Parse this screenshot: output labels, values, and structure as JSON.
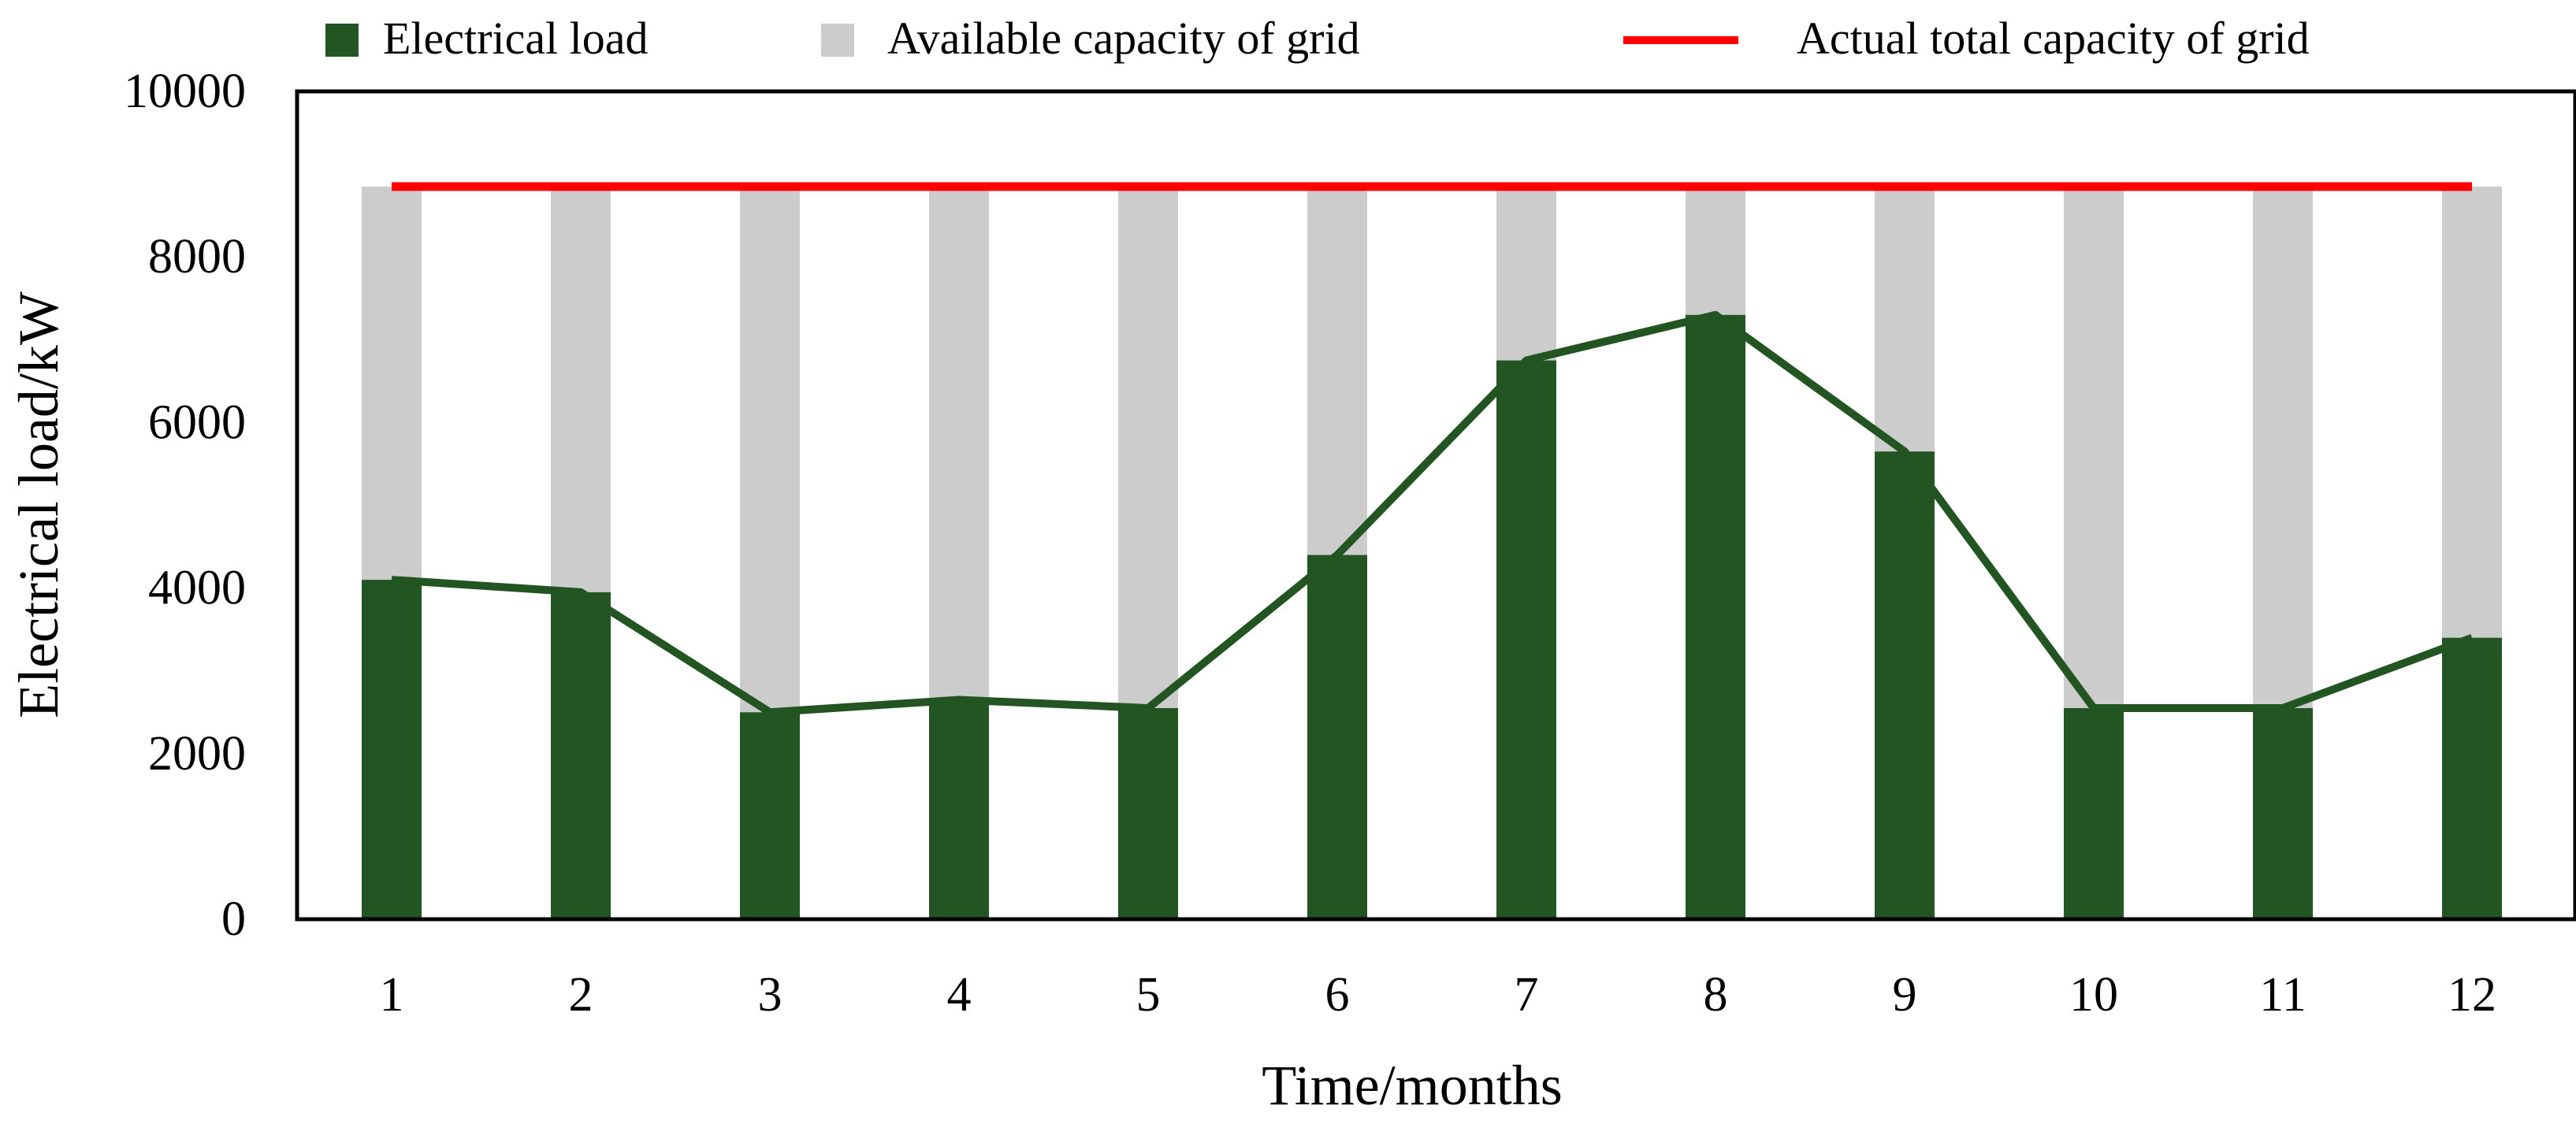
{
  "chart_data": {
    "type": "bar",
    "title": "",
    "xlabel": "Time/months",
    "ylabel": "Electrical  load/kW",
    "categories": [
      "1",
      "2",
      "3",
      "4",
      "5",
      "6",
      "7",
      "8",
      "9",
      "10",
      "11",
      "12"
    ],
    "ylim": [
      0,
      10000
    ],
    "yticks": [
      0,
      2000,
      4000,
      6000,
      8000,
      10000
    ],
    "ytick_labels": [
      "0",
      "2000",
      "4000",
      "6000",
      "8000",
      "10000"
    ],
    "grid": false,
    "legend_position": "top",
    "series": [
      {
        "name": "Electrical load",
        "kind": "bar+line",
        "color": "#225522",
        "values": [
          4100,
          3950,
          2500,
          2650,
          2550,
          4400,
          6750,
          7300,
          5650,
          2550,
          2550,
          3400
        ]
      },
      {
        "name": "Available capacity of grid",
        "kind": "stacked-bar",
        "color": "#cccccc",
        "values": [
          4750,
          4900,
          6350,
          6200,
          6300,
          4450,
          2100,
          1550,
          3200,
          6300,
          6300,
          5450
        ]
      },
      {
        "name": "Actual total capacity of grid",
        "kind": "line",
        "color": "#ff0000",
        "values": [
          8850,
          8850,
          8850,
          8850,
          8850,
          8850,
          8850,
          8850,
          8850,
          8850,
          8850,
          8850
        ]
      }
    ]
  }
}
